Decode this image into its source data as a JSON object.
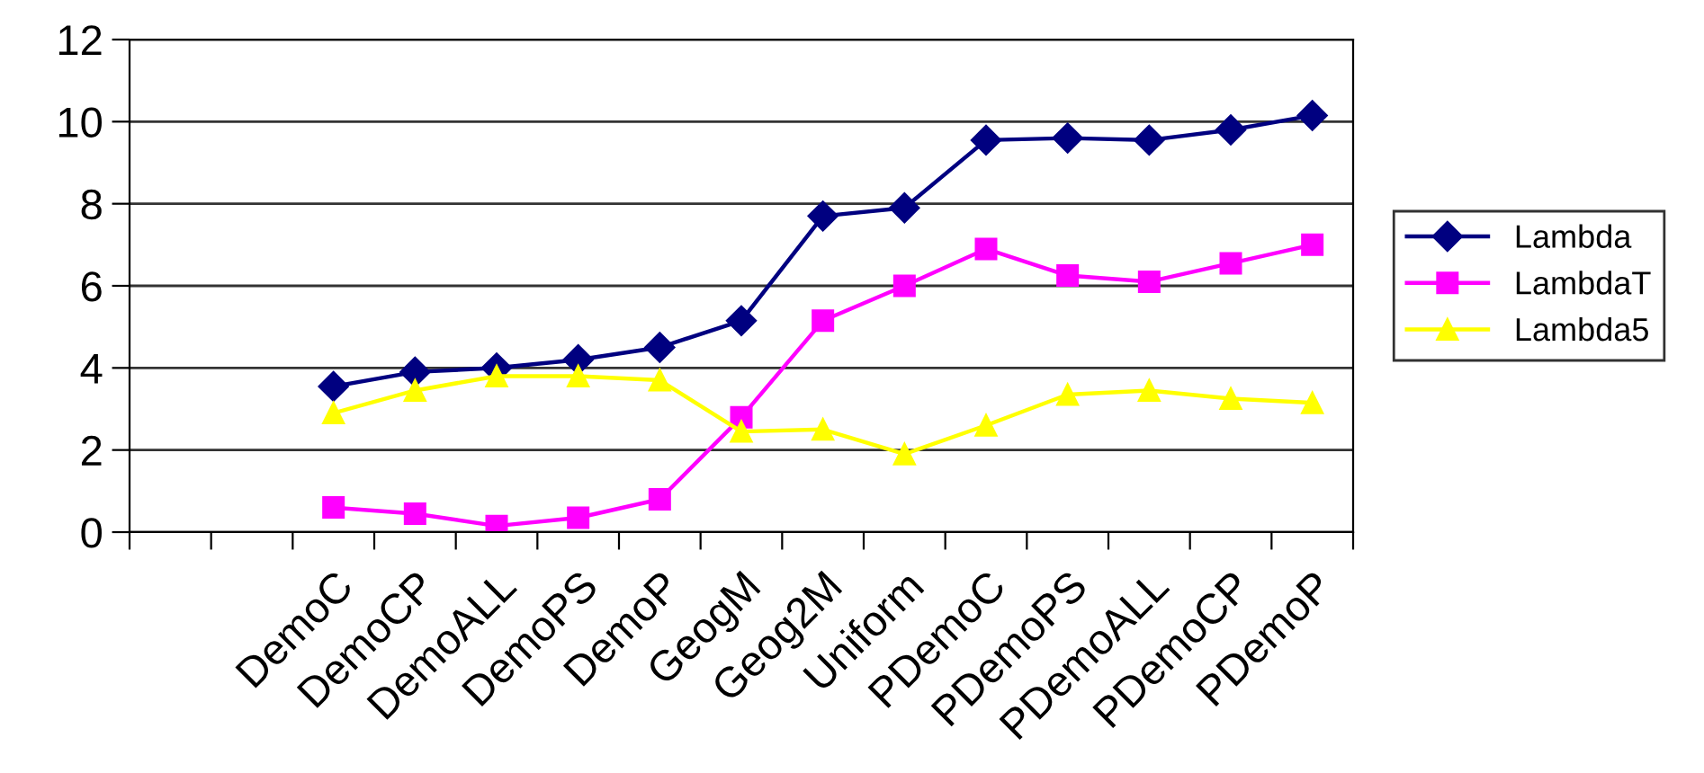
{
  "chart_data": {
    "type": "line",
    "categories": [
      null,
      null,
      "DemoC",
      "DemoCP",
      "DemoALL",
      "DemoPS",
      "DemoP",
      "GeogM",
      "Geog2M",
      "Uniform",
      "PDemoC",
      "PDemoPS",
      "PDemoALL",
      "PDemoCP",
      "PDemoP"
    ],
    "series": [
      {
        "name": "Lambda",
        "color": "#000080",
        "marker": "diamond",
        "values": [
          null,
          null,
          3.55,
          3.9,
          4.0,
          4.2,
          4.5,
          5.15,
          7.7,
          7.9,
          9.55,
          9.6,
          9.55,
          9.8,
          10.15
        ]
      },
      {
        "name": "LambdaT",
        "color": "#ff00ff",
        "marker": "square",
        "values": [
          null,
          null,
          0.6,
          0.45,
          0.15,
          0.35,
          0.8,
          2.8,
          5.15,
          6.0,
          6.9,
          6.25,
          6.1,
          6.55,
          7.0
        ]
      },
      {
        "name": "Lambda5",
        "color": "#ffff00",
        "marker": "triangle",
        "values": [
          null,
          null,
          2.9,
          3.45,
          3.8,
          3.8,
          3.7,
          2.45,
          2.5,
          1.9,
          2.6,
          3.35,
          3.45,
          3.25,
          3.15
        ]
      }
    ],
    "ylim": [
      0,
      12
    ],
    "yticks": [
      0,
      2,
      4,
      6,
      8,
      10,
      12
    ],
    "grid": "y",
    "legend": "right"
  }
}
